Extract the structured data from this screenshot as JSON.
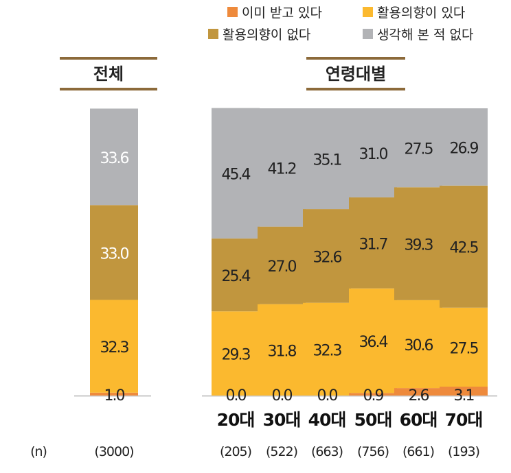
{
  "chart_data": {
    "type": "bar",
    "stacked": true,
    "groups": [
      {
        "header": "전체",
        "categories": [
          ""
        ]
      },
      {
        "header": "연령대별",
        "categories": [
          "20대",
          "30대",
          "40대",
          "50대",
          "60대",
          "70대"
        ]
      }
    ],
    "categories": [
      "전체",
      "20대",
      "30대",
      "40대",
      "50대",
      "60대",
      "70대"
    ],
    "series": [
      {
        "name": "이미 받고 있다",
        "color": "#ee8a3c",
        "values": [
          1.0,
          0.0,
          0.0,
          0.0,
          0.9,
          2.6,
          3.1
        ],
        "labels": [
          "1.0",
          "0.0",
          "0.0",
          "0.0",
          "0.9",
          "2.6",
          "3.1"
        ]
      },
      {
        "name": "활용의향이 있다",
        "color": "#fbb92f",
        "values": [
          32.3,
          29.3,
          31.8,
          32.3,
          36.4,
          30.6,
          27.5
        ],
        "labels": [
          "32.3",
          "29.3",
          "31.8",
          "32.3",
          "36.4",
          "30.6",
          "27.5"
        ]
      },
      {
        "name": "활용의향이 없다",
        "color": "#c1963e",
        "values": [
          33.0,
          25.4,
          27.0,
          32.6,
          31.7,
          39.3,
          42.5
        ],
        "labels": [
          "33.0",
          "25.4",
          "27.0",
          "32.6",
          "31.7",
          "39.3",
          "42.5"
        ]
      },
      {
        "name": "생각해 본 적 없다",
        "color": "#b2b3b6",
        "values": [
          33.6,
          45.4,
          41.2,
          35.1,
          31.0,
          27.5,
          26.9
        ],
        "labels": [
          "33.6",
          "45.4",
          "41.2",
          "35.1",
          "31.0",
          "27.5",
          "26.9"
        ]
      }
    ],
    "n_label": "(n)",
    "n_values": [
      "(3000)",
      "(205)",
      "(522)",
      "(663)",
      "(756)",
      "(661)",
      "(193)"
    ],
    "legend_position": "top-right",
    "ylim": [
      0,
      100
    ]
  }
}
